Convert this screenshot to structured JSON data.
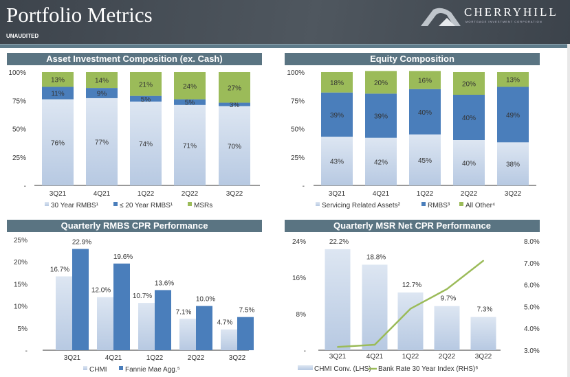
{
  "header": {
    "title": "Portfolio Metrics",
    "subtitle": "UNAUDITED",
    "logo_name": "CHERRYHILL",
    "logo_tagline": "MORTGAGE INVESTMENT CORPORATION"
  },
  "colors": {
    "light": "#d0dcec",
    "blue": "#4a7ebb",
    "green": "#9bbb59",
    "title_bar": "#5a7482"
  },
  "chart_data": [
    {
      "type": "bar",
      "stacked": true,
      "title": "Asset Investment Composition (ex. Cash)",
      "categories": [
        "3Q21",
        "4Q21",
        "1Q22",
        "2Q22",
        "3Q22"
      ],
      "yticks": [
        "-",
        "25%",
        "50%",
        "75%",
        "100%"
      ],
      "ylim": [
        0,
        100
      ],
      "series": [
        {
          "name": "30 Year RMBS¹",
          "values": [
            76,
            77,
            74,
            71,
            70
          ],
          "labels": [
            "76%",
            "77%",
            "74%",
            "71%",
            "70%"
          ]
        },
        {
          "name": "≤ 20 Year RMBS¹",
          "values": [
            11,
            9,
            5,
            5,
            3
          ],
          "labels": [
            "11%",
            "9%",
            "5%",
            "5%",
            "3%"
          ]
        },
        {
          "name": "MSRs",
          "values": [
            13,
            14,
            21,
            24,
            27
          ],
          "labels": [
            "13%",
            "14%",
            "21%",
            "24%",
            "27%"
          ]
        }
      ]
    },
    {
      "type": "bar",
      "stacked": true,
      "title": "Equity Composition",
      "categories": [
        "3Q21",
        "4Q21",
        "1Q22",
        "2Q22",
        "3Q22"
      ],
      "yticks": [
        "-",
        "25%",
        "50%",
        "75%",
        "100%"
      ],
      "ylim": [
        0,
        100
      ],
      "series": [
        {
          "name": "Servicing Related Assets²",
          "values": [
            43,
            42,
            45,
            40,
            38
          ],
          "labels": [
            "43%",
            "42%",
            "45%",
            "40%",
            "38%"
          ]
        },
        {
          "name": "RMBS³",
          "values": [
            39,
            39,
            40,
            40,
            49
          ],
          "labels": [
            "39%",
            "39%",
            "40%",
            "40%",
            "49%"
          ]
        },
        {
          "name": "All Other⁴",
          "values": [
            18,
            20,
            16,
            20,
            13
          ],
          "labels": [
            "18%",
            "20%",
            "16%",
            "20%",
            "13%"
          ]
        }
      ]
    },
    {
      "type": "bar",
      "stacked": false,
      "title": "Quarterly RMBS CPR Performance",
      "categories": [
        "3Q21",
        "4Q21",
        "1Q22",
        "2Q22",
        "3Q22"
      ],
      "yticks": [
        "-",
        "5%",
        "10%",
        "15%",
        "20%",
        "25%"
      ],
      "ylim": [
        0,
        25
      ],
      "series": [
        {
          "name": "CHMI",
          "values": [
            16.7,
            12.0,
            10.7,
            7.1,
            4.7
          ],
          "labels": [
            "16.7%",
            "12.0%",
            "10.7%",
            "7.1%",
            "4.7%"
          ]
        },
        {
          "name": "Fannie Mae Agg.⁵",
          "values": [
            22.9,
            19.6,
            13.6,
            10.0,
            7.5
          ],
          "labels": [
            "22.9%",
            "19.6%",
            "13.6%",
            "10.0%",
            "7.5%"
          ]
        }
      ]
    },
    {
      "type": "bar+line",
      "title": "Quarterly MSR Net CPR Performance",
      "categories": [
        "3Q21",
        "4Q21",
        "1Q22",
        "2Q22",
        "3Q22"
      ],
      "yticks": [
        "-",
        "8%",
        "16%",
        "24%"
      ],
      "ylim": [
        0,
        24
      ],
      "y2ticks": [
        "3.0%",
        "4.0%",
        "5.0%",
        "6.0%",
        "7.0%",
        "8.0%"
      ],
      "y2lim": [
        3,
        8
      ],
      "series": [
        {
          "name": "CHMI Conv. (LHS)",
          "values": [
            22.2,
            18.8,
            12.7,
            9.7,
            7.3
          ],
          "labels": [
            "22.2%",
            "18.8%",
            "12.7%",
            "9.7%",
            "7.3%"
          ]
        },
        {
          "name": "Bank Rate 30 Year Index (RHS)⁶",
          "axis": "right",
          "values": [
            3.15,
            3.25,
            4.9,
            5.8,
            7.1
          ]
        }
      ]
    }
  ]
}
